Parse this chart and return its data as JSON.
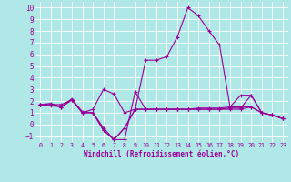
{
  "bg_color": "#b0e8e8",
  "grid_color": "#ffffff",
  "line_color": "#990099",
  "xlabel": "Windchill (Refroidissement éolien,°C)",
  "xlim": [
    -0.5,
    23.5
  ],
  "ylim": [
    -1.5,
    10.5
  ],
  "xticks": [
    0,
    1,
    2,
    3,
    4,
    5,
    6,
    7,
    8,
    9,
    10,
    11,
    12,
    13,
    14,
    15,
    16,
    17,
    18,
    19,
    20,
    21,
    22,
    23
  ],
  "yticks": [
    -1,
    0,
    1,
    2,
    3,
    4,
    5,
    6,
    7,
    8,
    9,
    10
  ],
  "series": [
    [
      1.7,
      1.8,
      1.5,
      2.1,
      1.1,
      1.0,
      -0.3,
      -1.3,
      -1.3,
      2.8,
      1.3,
      1.3,
      1.3,
      1.3,
      1.3,
      1.4,
      1.4,
      1.4,
      1.5,
      1.5,
      1.5,
      1.0,
      0.8,
      0.5
    ],
    [
      1.7,
      1.7,
      1.5,
      2.1,
      1.0,
      1.0,
      -0.5,
      -1.3,
      -0.3,
      1.3,
      1.3,
      1.3,
      1.3,
      1.3,
      1.3,
      1.3,
      1.3,
      1.3,
      1.4,
      1.4,
      2.5,
      1.0,
      0.8,
      0.5
    ],
    [
      1.7,
      1.7,
      1.7,
      2.1,
      1.0,
      1.0,
      -0.5,
      -1.3,
      -0.3,
      1.3,
      1.3,
      1.3,
      1.3,
      1.3,
      1.3,
      1.3,
      1.3,
      1.3,
      1.3,
      1.3,
      1.5,
      1.0,
      0.8,
      0.5
    ],
    [
      1.7,
      1.6,
      1.5,
      2.2,
      1.0,
      1.3,
      3.0,
      2.6,
      1.0,
      1.3,
      5.5,
      5.5,
      5.8,
      7.5,
      10.0,
      9.3,
      8.0,
      6.8,
      1.5,
      2.5,
      2.5,
      1.0,
      0.8,
      0.5
    ]
  ]
}
